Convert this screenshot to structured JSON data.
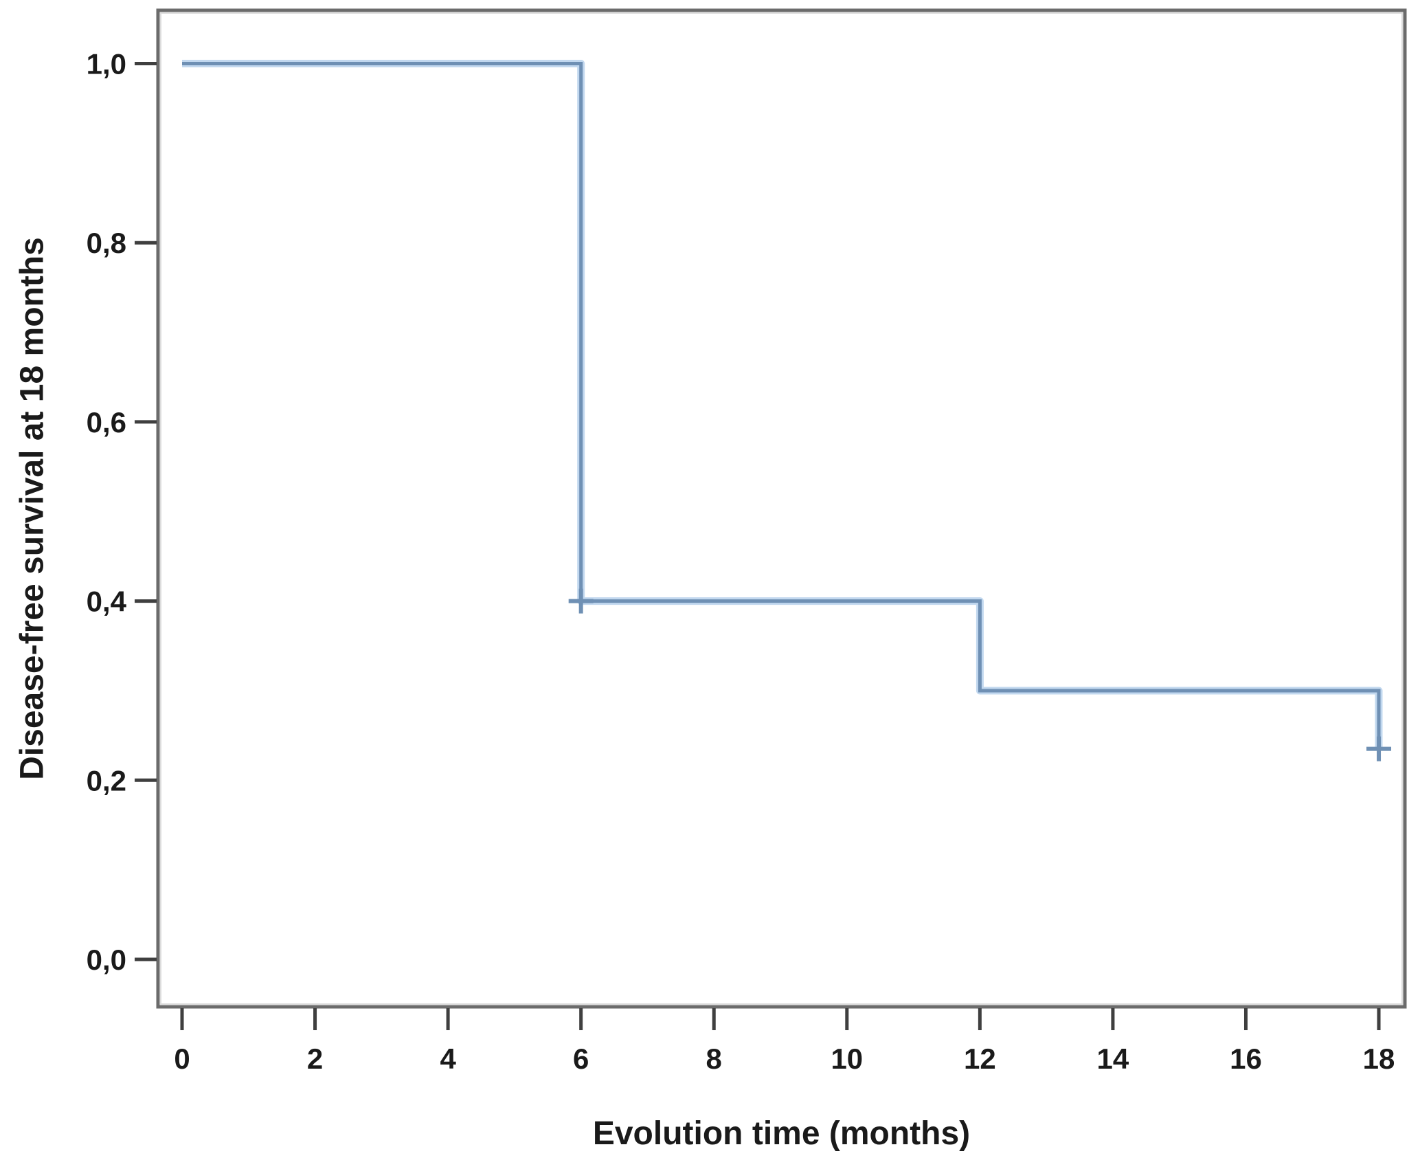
{
  "figure": {
    "background_color": "#ffffff"
  },
  "chart_data": {
    "type": "line",
    "subtype": "kaplan-meier-step-survival",
    "title": "",
    "xlabel": "Evolution time (months)",
    "ylabel": "Disease-free survival at 18 months",
    "xlim": [
      0,
      18
    ],
    "ylim": [
      0.0,
      1.0
    ],
    "grid": false,
    "legend": "none",
    "x_ticks": [
      {
        "value": 0,
        "label": "0"
      },
      {
        "value": 2,
        "label": "2"
      },
      {
        "value": 4,
        "label": "4"
      },
      {
        "value": 6,
        "label": "6"
      },
      {
        "value": 8,
        "label": "8"
      },
      {
        "value": 10,
        "label": "10"
      },
      {
        "value": 12,
        "label": "12"
      },
      {
        "value": 14,
        "label": "14"
      },
      {
        "value": 16,
        "label": "16"
      },
      {
        "value": 18,
        "label": "18"
      }
    ],
    "y_ticks": [
      {
        "value": 0.0,
        "label": "0,0"
      },
      {
        "value": 0.2,
        "label": "0,2"
      },
      {
        "value": 0.4,
        "label": "0,4"
      },
      {
        "value": 0.6,
        "label": "0,6"
      },
      {
        "value": 0.8,
        "label": "0,8"
      },
      {
        "value": 1.0,
        "label": "1,0"
      }
    ],
    "series": [
      {
        "name": "Disease-free survival",
        "color": "#6f90b4",
        "halo_color": "#c2d8ef",
        "step_points": [
          {
            "x": 0,
            "y": 1.0
          },
          {
            "x": 6,
            "y": 1.0
          },
          {
            "x": 6,
            "y": 0.4
          },
          {
            "x": 12,
            "y": 0.4
          },
          {
            "x": 12,
            "y": 0.3
          },
          {
            "x": 18,
            "y": 0.3
          },
          {
            "x": 18,
            "y": 0.235
          }
        ]
      }
    ],
    "censored_points": [
      {
        "x": 6,
        "y": 0.4
      },
      {
        "x": 18,
        "y": 0.235
      }
    ],
    "colors": {
      "frame": "#6b6b6b",
      "frame_highlight": "#dcdcdc",
      "tick": "#3f3f3f",
      "text": "#1a1a1a"
    }
  }
}
